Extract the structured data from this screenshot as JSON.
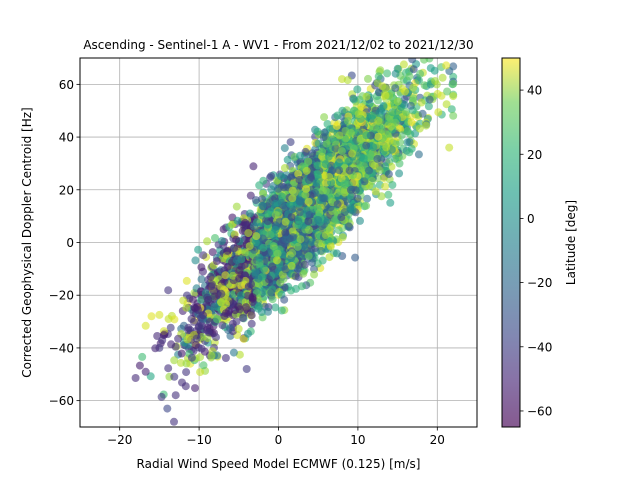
{
  "chart_data": {
    "type": "scatter",
    "title": "Ascending - Sentinel-1 A - WV1 - From 2021/12/02 to 2021/12/30",
    "xlabel": "Radial Wind Speed Model ECMWF (0.125) [m/s]",
    "ylabel": "Corrected Geophysical Doppler Centroid [Hz]",
    "xlim": [
      -25,
      25
    ],
    "ylim": [
      -70,
      70
    ],
    "xticks": [
      -20,
      -10,
      0,
      10,
      20
    ],
    "yticks": [
      -60,
      -40,
      -20,
      0,
      20,
      40,
      60
    ],
    "grid": true,
    "colorbar": {
      "label": "Latitude [deg]",
      "range": [
        -65,
        50
      ],
      "ticks": [
        -60,
        -40,
        -20,
        0,
        20,
        40
      ],
      "colormap": "viridis",
      "alpha": 0.6
    },
    "trend": {
      "slope": 3.0,
      "intercept": 2.0,
      "noise_sd_hz": 10.0,
      "x_range": [
        -18,
        22
      ],
      "approx_point_count": 4500
    },
    "points_sample": [
      {
        "x": -16,
        "y": -28,
        "lat": 45
      },
      {
        "x": -15,
        "y": -40,
        "lat": -45
      },
      {
        "x": -14,
        "y": -63,
        "lat": -40
      },
      {
        "x": -12,
        "y": -22,
        "lat": 40
      },
      {
        "x": -10,
        "y": -35,
        "lat": -55
      },
      {
        "x": -8,
        "y": -30,
        "lat": -50
      },
      {
        "x": -6,
        "y": -10,
        "lat": 35
      },
      {
        "x": -4,
        "y": -48,
        "lat": -45
      },
      {
        "x": -2,
        "y": 5,
        "lat": -10
      },
      {
        "x": 0,
        "y": 0,
        "lat": 5
      },
      {
        "x": 2,
        "y": 15,
        "lat": 10
      },
      {
        "x": 4,
        "y": 25,
        "lat": 20
      },
      {
        "x": 6,
        "y": 42,
        "lat": 5
      },
      {
        "x": 8,
        "y": 62,
        "lat": 40
      },
      {
        "x": 10,
        "y": 38,
        "lat": 25
      },
      {
        "x": 12,
        "y": 50,
        "lat": 35
      },
      {
        "x": 15,
        "y": 40,
        "lat": 42
      },
      {
        "x": 17,
        "y": 56,
        "lat": 45
      },
      {
        "x": 21.5,
        "y": 36,
        "lat": 40
      }
    ]
  }
}
